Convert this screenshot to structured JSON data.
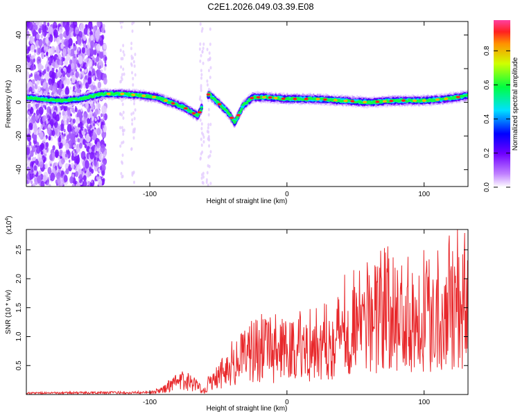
{
  "title": "C2E1.2026.049.03.39.E08",
  "chart_data": [
    {
      "type": "heatmap",
      "title": "C2E1.2026.049.03.39.E08",
      "xlabel": "Height of straight line (km)",
      "ylabel": "Frequency (Hz)",
      "xlim": [
        -190,
        132
      ],
      "ylim": [
        -50,
        48
      ],
      "xticks": [
        -100,
        0,
        100
      ],
      "yticks": [
        -40,
        -20,
        0,
        20,
        40
      ],
      "colorbar": {
        "label": "Normalized spectral amplitude",
        "range": [
          0,
          0.98
        ],
        "ticks": [
          0.0,
          0.2,
          0.4,
          0.6,
          0.8
        ]
      },
      "ridge": [
        {
          "x": -190,
          "y": 3
        },
        {
          "x": -180,
          "y": 2
        },
        {
          "x": -165,
          "y": 1
        },
        {
          "x": -150,
          "y": 2
        },
        {
          "x": -135,
          "y": 5
        },
        {
          "x": -120,
          "y": 5
        },
        {
          "x": -105,
          "y": 4
        },
        {
          "x": -95,
          "y": 3
        },
        {
          "x": -85,
          "y": 0
        },
        {
          "x": -75,
          "y": -3
        },
        {
          "x": -65,
          "y": -8
        },
        {
          "x": -57,
          "y": 5
        },
        {
          "x": -48,
          "y": -2
        },
        {
          "x": -43,
          "y": -6
        },
        {
          "x": -38,
          "y": -12
        },
        {
          "x": -32,
          "y": -2
        },
        {
          "x": -25,
          "y": 3
        },
        {
          "x": -15,
          "y": 3
        },
        {
          "x": 0,
          "y": 2
        },
        {
          "x": 20,
          "y": 2
        },
        {
          "x": 40,
          "y": 1
        },
        {
          "x": 60,
          "y": 0
        },
        {
          "x": 80,
          "y": 1
        },
        {
          "x": 100,
          "y": 1
        },
        {
          "x": 115,
          "y": 2
        },
        {
          "x": 132,
          "y": 4
        }
      ]
    },
    {
      "type": "line",
      "xlabel": "Height of straight line (km)",
      "ylabel": "SNR (10 * v/v)",
      "scale_label": "(x10",
      "scale_exp": "4",
      "scale_close": ")",
      "xlim": [
        -190,
        132
      ],
      "ylim": [
        0,
        2.85
      ],
      "xticks": [
        -100,
        0,
        100
      ],
      "yticks": [
        0.5,
        1.0,
        1.5,
        2.0,
        2.5
      ],
      "series": [
        {
          "name": "SNR",
          "color": "#e8282b",
          "envelope": [
            {
              "x": -190,
              "y": 0.03
            },
            {
              "x": -100,
              "y": 0.05
            },
            {
              "x": -90,
              "y": 0.15
            },
            {
              "x": -80,
              "y": 0.35
            },
            {
              "x": -72,
              "y": 0.4
            },
            {
              "x": -65,
              "y": 0.25
            },
            {
              "x": -60,
              "y": 0.12
            },
            {
              "x": -55,
              "y": 0.45
            },
            {
              "x": -45,
              "y": 0.75
            },
            {
              "x": -35,
              "y": 1.0
            },
            {
              "x": -25,
              "y": 1.4
            },
            {
              "x": -15,
              "y": 1.3
            },
            {
              "x": -5,
              "y": 1.3
            },
            {
              "x": 5,
              "y": 1.35
            },
            {
              "x": 15,
              "y": 1.45
            },
            {
              "x": 30,
              "y": 1.6
            },
            {
              "x": 45,
              "y": 2.0
            },
            {
              "x": 60,
              "y": 2.3
            },
            {
              "x": 80,
              "y": 2.4
            },
            {
              "x": 100,
              "y": 2.45
            },
            {
              "x": 115,
              "y": 2.5
            },
            {
              "x": 125,
              "y": 2.85
            },
            {
              "x": 132,
              "y": 2.5
            }
          ]
        }
      ]
    }
  ]
}
